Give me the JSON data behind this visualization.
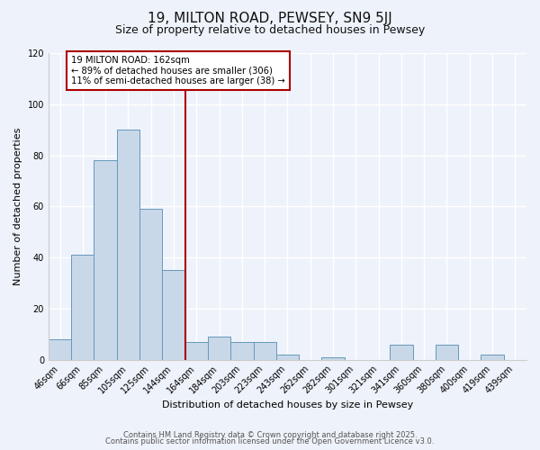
{
  "title": "19, MILTON ROAD, PEWSEY, SN9 5JJ",
  "subtitle": "Size of property relative to detached houses in Pewsey",
  "xlabel": "Distribution of detached houses by size in Pewsey",
  "ylabel": "Number of detached properties",
  "bar_labels": [
    "46sqm",
    "66sqm",
    "85sqm",
    "105sqm",
    "125sqm",
    "144sqm",
    "164sqm",
    "184sqm",
    "203sqm",
    "223sqm",
    "243sqm",
    "262sqm",
    "282sqm",
    "301sqm",
    "321sqm",
    "341sqm",
    "360sqm",
    "380sqm",
    "400sqm",
    "419sqm",
    "439sqm"
  ],
  "bar_values": [
    8,
    41,
    78,
    90,
    59,
    35,
    7,
    9,
    7,
    7,
    2,
    0,
    1,
    0,
    0,
    6,
    0,
    6,
    0,
    2,
    0
  ],
  "bar_color": "#c8d8e8",
  "bar_edge_color": "#6699bb",
  "vline_color": "#aa0000",
  "annotation_text": "19 MILTON ROAD: 162sqm\n← 89% of detached houses are smaller (306)\n11% of semi-detached houses are larger (38) →",
  "annotation_box_color": "#ffffff",
  "annotation_box_edge": "#aa0000",
  "ylim": [
    0,
    120
  ],
  "yticks": [
    0,
    20,
    40,
    60,
    80,
    100,
    120
  ],
  "footer1": "Contains HM Land Registry data © Crown copyright and database right 2025.",
  "footer2": "Contains public sector information licensed under the Open Government Licence v3.0.",
  "bg_color": "#eef2fa",
  "grid_color": "#ffffff",
  "title_fontsize": 11,
  "subtitle_fontsize": 9,
  "tick_fontsize": 7,
  "axis_label_fontsize": 8,
  "footer_fontsize": 6
}
